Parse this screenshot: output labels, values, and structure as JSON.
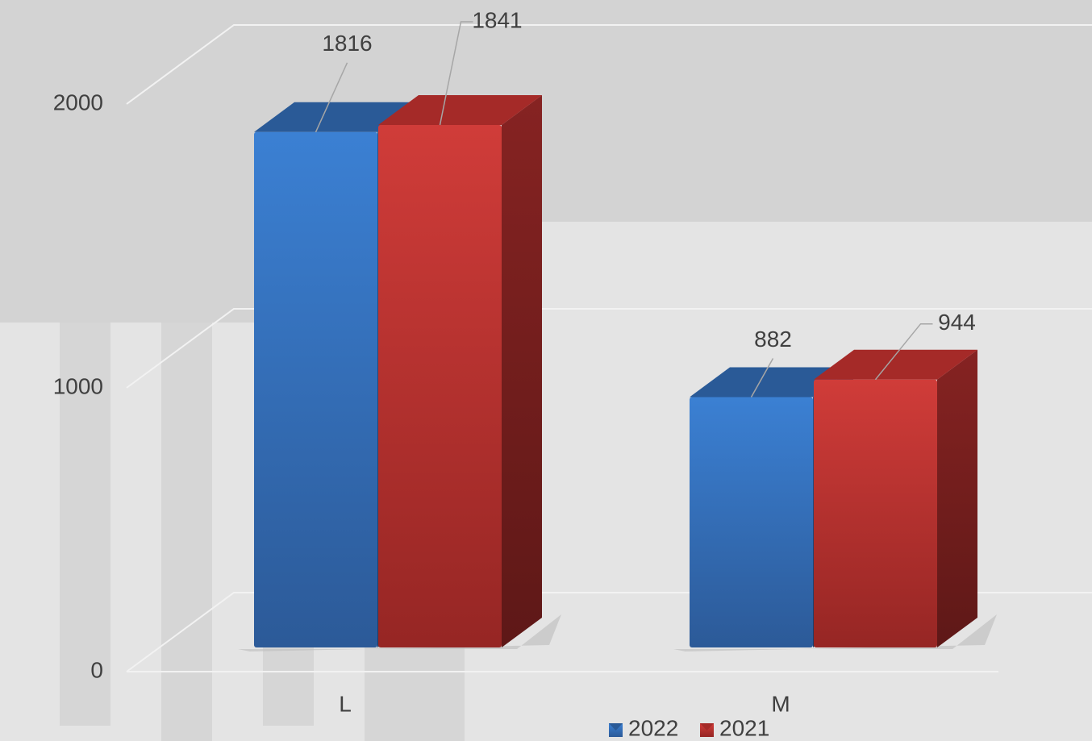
{
  "chart_data": {
    "type": "bar3d",
    "categories": [
      "L",
      "M"
    ],
    "series": [
      {
        "name": "2022",
        "color": "#3a7bd0",
        "values": [
          1816,
          882
        ]
      },
      {
        "name": "2021",
        "color": "#cc3a37",
        "values": [
          1841,
          944
        ]
      }
    ],
    "ylim": [
      0,
      2000
    ],
    "yticks": [
      0,
      1000,
      2000
    ],
    "grid": true,
    "legend": "bottom"
  }
}
